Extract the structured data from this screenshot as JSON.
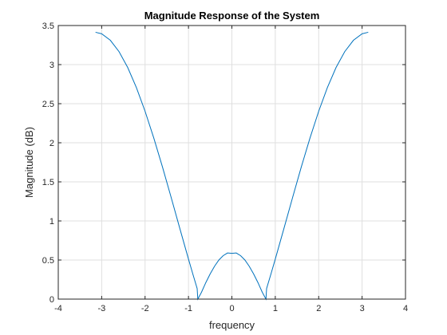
{
  "chart_data": {
    "type": "line",
    "title": "Magnitude Response of the System",
    "xlabel": "frequency",
    "ylabel": "Magnitude (dB)",
    "xlim": [
      -4,
      4
    ],
    "ylim": [
      0,
      3.5
    ],
    "xticks": [
      -4,
      -3,
      -2,
      -1,
      0,
      1,
      2,
      3,
      4
    ],
    "xtick_labels": [
      "-4",
      "-3",
      "-2",
      "-1",
      "0",
      "1",
      "2",
      "3",
      "4"
    ],
    "yticks": [
      0,
      0.5,
      1,
      1.5,
      2,
      2.5,
      3,
      3.5
    ],
    "ytick_labels": [
      "0",
      "0.5",
      "1",
      "1.5",
      "2",
      "2.5",
      "3",
      "3.5"
    ],
    "grid": true,
    "line_color": "#0072BD",
    "series": [
      {
        "x": [
          -3.1416,
          -3.0,
          -2.8,
          -2.6,
          -2.4,
          -2.2,
          -2.0,
          -1.8,
          -1.6,
          -1.4,
          -1.2,
          -1.0,
          -0.9,
          -0.8,
          -0.785,
          -0.7,
          -0.6,
          -0.5,
          -0.4,
          -0.3,
          -0.2,
          -0.1,
          0.0,
          0.1,
          0.2,
          0.3,
          0.4,
          0.5,
          0.6,
          0.7,
          0.785,
          0.8,
          0.9,
          1.0,
          1.2,
          1.4,
          1.6,
          1.8,
          2.0,
          2.2,
          2.4,
          2.6,
          2.8,
          3.0,
          3.1416
        ],
        "y": [
          3.414,
          3.394,
          3.311,
          3.166,
          2.963,
          2.706,
          2.403,
          2.062,
          1.692,
          1.302,
          0.905,
          0.512,
          0.321,
          0.136,
          0.0,
          0.088,
          0.212,
          0.323,
          0.42,
          0.5,
          0.556,
          0.59,
          0.586,
          0.59,
          0.556,
          0.5,
          0.42,
          0.323,
          0.212,
          0.088,
          0.0,
          0.136,
          0.321,
          0.512,
          0.905,
          1.302,
          1.692,
          2.062,
          2.403,
          2.706,
          2.963,
          3.166,
          3.311,
          3.394,
          3.414
        ]
      }
    ]
  }
}
